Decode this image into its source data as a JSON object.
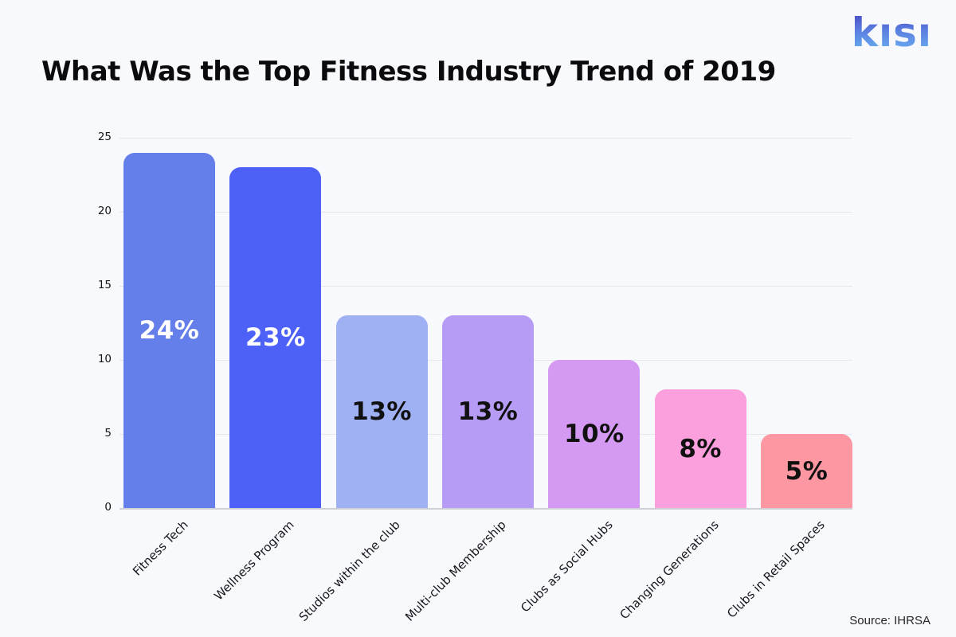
{
  "page": {
    "title": "What Was the Top Fitness Industry Trend of 2019",
    "logo_text": "kısı",
    "source": "Source: IHRSA",
    "background_color": "#f8f9fd"
  },
  "chart_data": {
    "type": "bar",
    "title": "What Was the Top Fitness Industry Trend of 2019",
    "categories": [
      "Fitness Tech",
      "Wellness Program",
      "Studios within the club",
      "Multi-club Membership",
      "Clubs as Social Hubs",
      "Changing Generations",
      "Clubs in Retail Spaces"
    ],
    "values": [
      24,
      23,
      13,
      13,
      10,
      8,
      5
    ],
    "value_labels": [
      "24%",
      "23%",
      "13%",
      "13%",
      "10%",
      "8%",
      "5%"
    ],
    "bar_colors": [
      "#647eea",
      "#4d61f8",
      "#9fb1f3",
      "#b69cf5",
      "#d49af3",
      "#fb9fdd",
      "#fd97a1"
    ],
    "value_label_colors": [
      "#ffffff",
      "#ffffff",
      "#111111",
      "#111111",
      "#111111",
      "#111111",
      "#111111"
    ],
    "y_ticks": [
      0,
      5,
      10,
      15,
      20,
      25
    ],
    "ylim": [
      0,
      25
    ],
    "xlabel": "",
    "ylabel": "",
    "grid": true,
    "legend_position": "none",
    "source": "Source: IHRSA",
    "axis_line_color": "#cfcfd6",
    "gridline_color": "#e7e7ec"
  }
}
